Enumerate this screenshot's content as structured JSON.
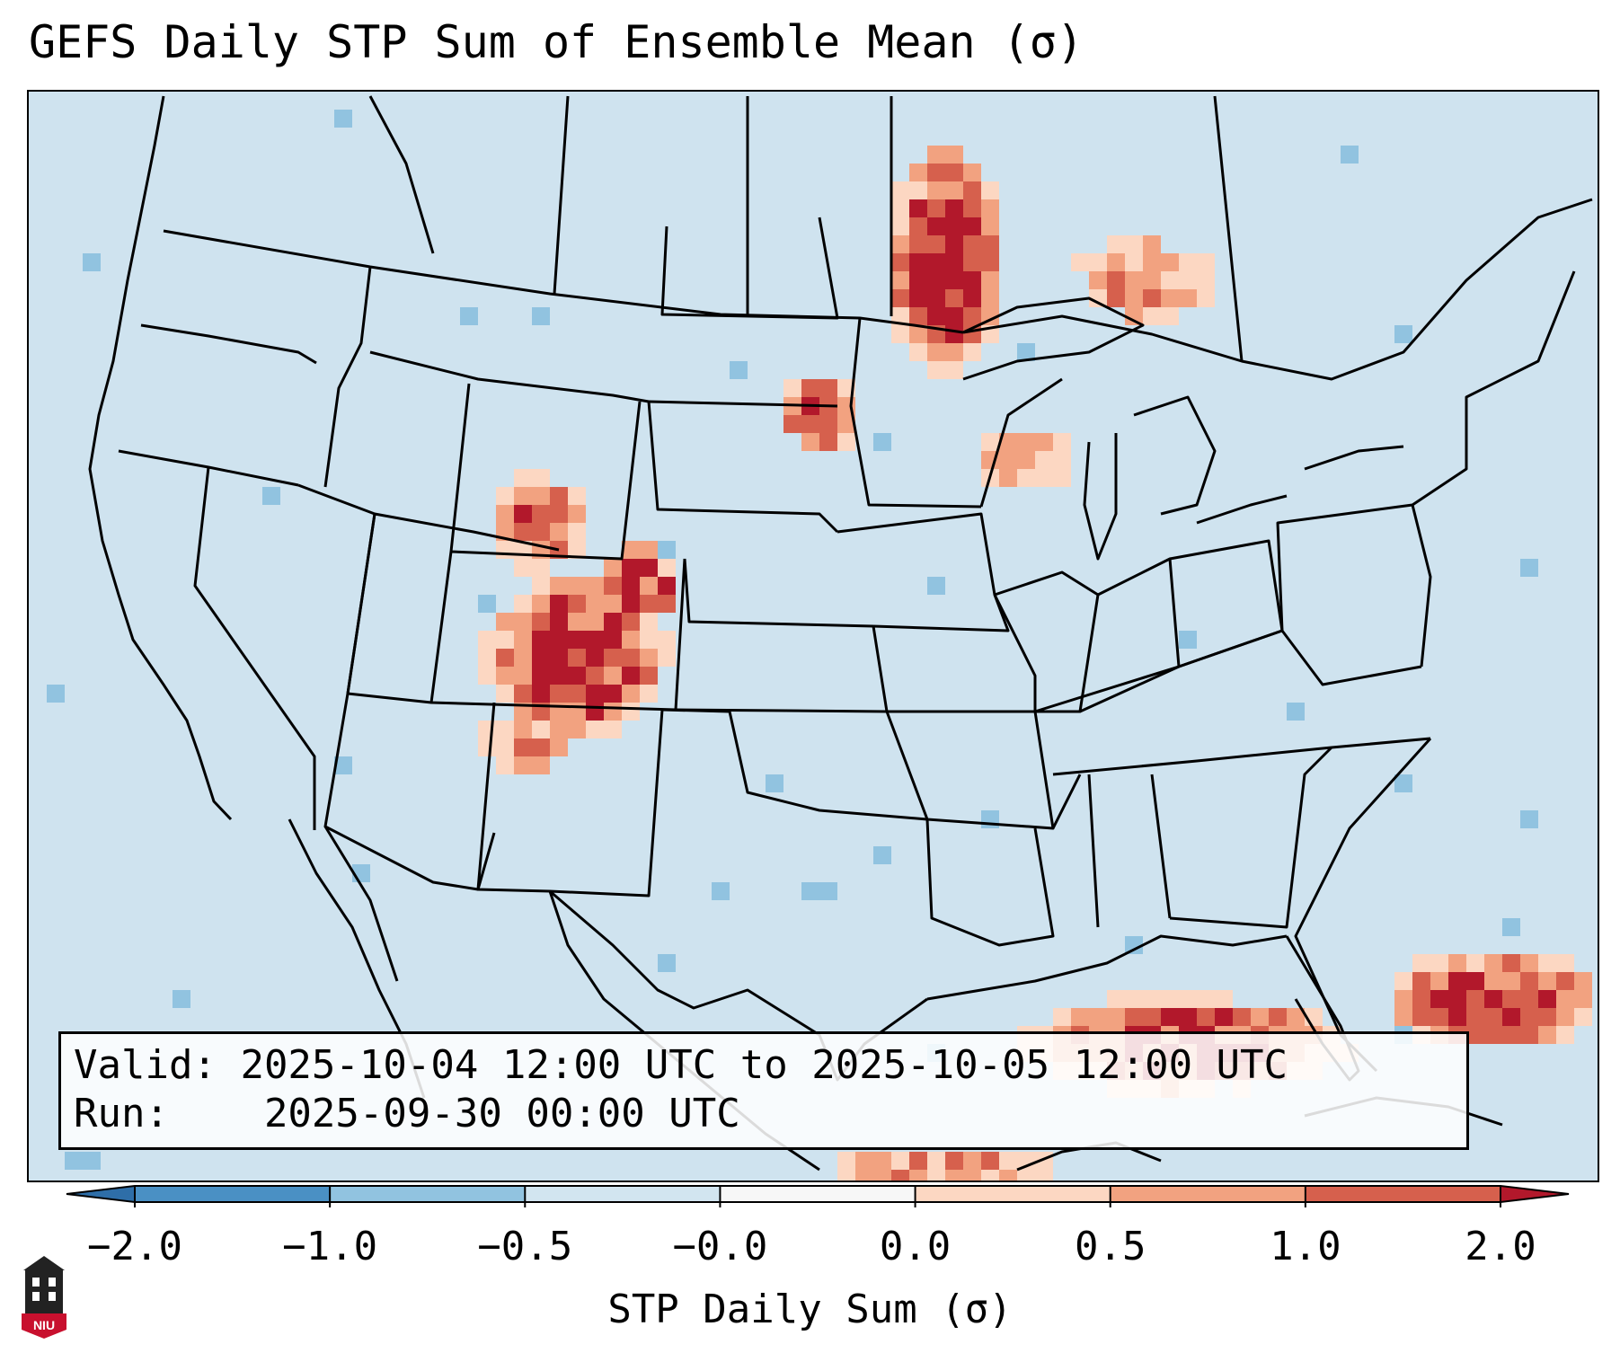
{
  "title": "GEFS Daily STP Sum of Ensemble Mean (σ)",
  "info": {
    "valid_label": "Valid:",
    "valid_value": "2025-10-04 12:00 UTC to 2025-10-05 12:00 UTC",
    "run_label": "Run:",
    "run_value": "2025-09-30 00:00 UTC"
  },
  "colorbar": {
    "label": "STP Daily Sum (σ)",
    "ticks": [
      "−2.0",
      "−1.0",
      "−0.5",
      "−0.0",
      "0.0",
      "0.5",
      "1.0",
      "2.0"
    ],
    "bins": [
      {
        "from": -2.0,
        "to": -1.0,
        "color": "#4a90c4"
      },
      {
        "from": -1.0,
        "to": -0.5,
        "color": "#91c3e0"
      },
      {
        "from": -0.5,
        "to": -0.0,
        "color": "#d2e5f0"
      },
      {
        "from": -0.0,
        "to": 0.0,
        "color": "#f7f7f7"
      },
      {
        "from": 0.0,
        "to": 0.5,
        "color": "#fcd7c2"
      },
      {
        "from": 0.5,
        "to": 1.0,
        "color": "#f2a280"
      },
      {
        "from": 1.0,
        "to": 2.0,
        "color": "#d6604d"
      }
    ],
    "under_color": "#2e6ea8",
    "over_color": "#b2182b"
  },
  "map": {
    "background_color": "#cfe3ef",
    "high_color": "#b2182b",
    "mid_color": "#d6604d",
    "low_color": "#f2a280",
    "faint_color": "#fcd7c2",
    "negative_color": "#91c3e0"
  },
  "logo_text": "NIU"
}
